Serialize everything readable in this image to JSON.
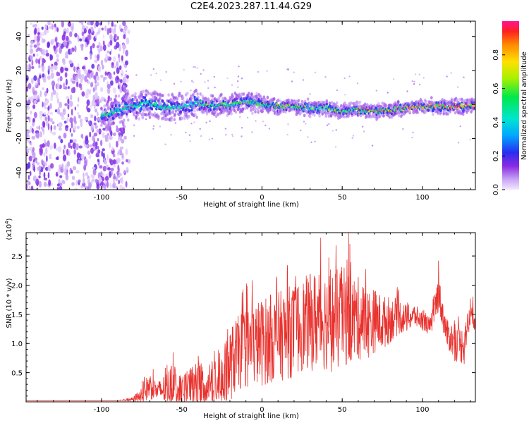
{
  "title": "C2E4.2023.287.11.44.G29",
  "chart_data": [
    {
      "type": "heatmap",
      "xlabel": "Height of straight line (km)",
      "ylabel": "Frequency (Hz)",
      "xlim": [
        -147,
        133
      ],
      "ylim": [
        -50,
        49
      ],
      "xticks": [
        -100,
        -50,
        0,
        50,
        100
      ],
      "yticks": [
        -40,
        -20,
        0,
        20,
        40
      ],
      "colorbar": {
        "label": "Normalized spectral amplitude",
        "range": [
          0.0,
          1.0
        ],
        "ticks": [
          "0.0",
          "0.2",
          "0.4",
          "0.6",
          "0.8"
        ]
      },
      "noise_region_x": [
        -147,
        -83
      ],
      "ridge": {
        "x": [
          -100,
          -90,
          -80,
          -70,
          -60,
          -50,
          -40,
          -30,
          -20,
          -10,
          0,
          10,
          20,
          30,
          40,
          50,
          60,
          70,
          80,
          90,
          100,
          110,
          120,
          133
        ],
        "y": [
          -7,
          -3,
          -1,
          1,
          -2,
          -1,
          1,
          -1,
          0,
          2,
          0,
          -1,
          -1,
          -2,
          -2,
          -4,
          -3,
          -4,
          -3,
          -2,
          -1,
          -1,
          -1,
          -1
        ]
      }
    },
    {
      "type": "line",
      "xlabel": "Height of straight line (km)",
      "ylabel": "SNR (10 * v/v)",
      "y_multiplier": "(x10^4)",
      "xlim": [
        -147,
        133
      ],
      "ylim": [
        0,
        2.9
      ],
      "xticks": [
        -100,
        -50,
        0,
        50,
        100
      ],
      "yticks": [
        0.5,
        1.0,
        1.5,
        2.0,
        2.5
      ],
      "color": "#e8322e",
      "series": [
        {
          "x": [
            -147,
            -120,
            -90,
            -80,
            -75,
            -70,
            -65,
            -60,
            -55,
            -50,
            -45,
            -40,
            -35,
            -30,
            -25,
            -20,
            -15,
            -10,
            -5,
            0,
            5,
            10,
            15,
            20,
            25,
            30,
            35,
            40,
            45,
            50,
            55,
            60,
            65,
            70,
            75,
            80,
            85,
            90,
            95,
            100,
            105,
            110,
            115,
            120,
            125,
            130,
            133
          ],
          "y": [
            0.02,
            0.02,
            0.02,
            0.05,
            0.15,
            0.3,
            0.2,
            0.25,
            0.35,
            0.2,
            0.3,
            0.35,
            0.3,
            0.45,
            0.4,
            0.7,
            0.9,
            1.0,
            1.05,
            1.1,
            1.15,
            1.2,
            1.25,
            1.3,
            1.4,
            1.45,
            1.5,
            1.5,
            1.45,
            1.55,
            1.5,
            1.5,
            1.4,
            1.45,
            1.4,
            1.45,
            1.5,
            1.45,
            1.5,
            1.4,
            1.3,
            1.9,
            1.2,
            1.05,
            1.0,
            1.5,
            1.45
          ],
          "spread": [
            0.0,
            0.0,
            0.0,
            0.05,
            0.2,
            0.3,
            0.2,
            0.35,
            0.45,
            0.3,
            0.4,
            0.5,
            0.45,
            0.6,
            0.6,
            0.8,
            0.8,
            0.9,
            0.9,
            0.95,
            0.95,
            0.95,
            1.0,
            1.0,
            1.0,
            1.05,
            1.1,
            1.1,
            1.1,
            1.1,
            1.0,
            0.9,
            0.8,
            0.7,
            0.6,
            0.5,
            0.4,
            0.3,
            0.25,
            0.2,
            0.2,
            0.4,
            0.3,
            0.4,
            0.4,
            0.3,
            0.25
          ]
        }
      ],
      "annotations": [
        {
          "x": 54,
          "y": 2.9
        },
        {
          "x": 110,
          "y": 2.42
        },
        {
          "x": 126,
          "y": 0.65
        }
      ]
    }
  ]
}
